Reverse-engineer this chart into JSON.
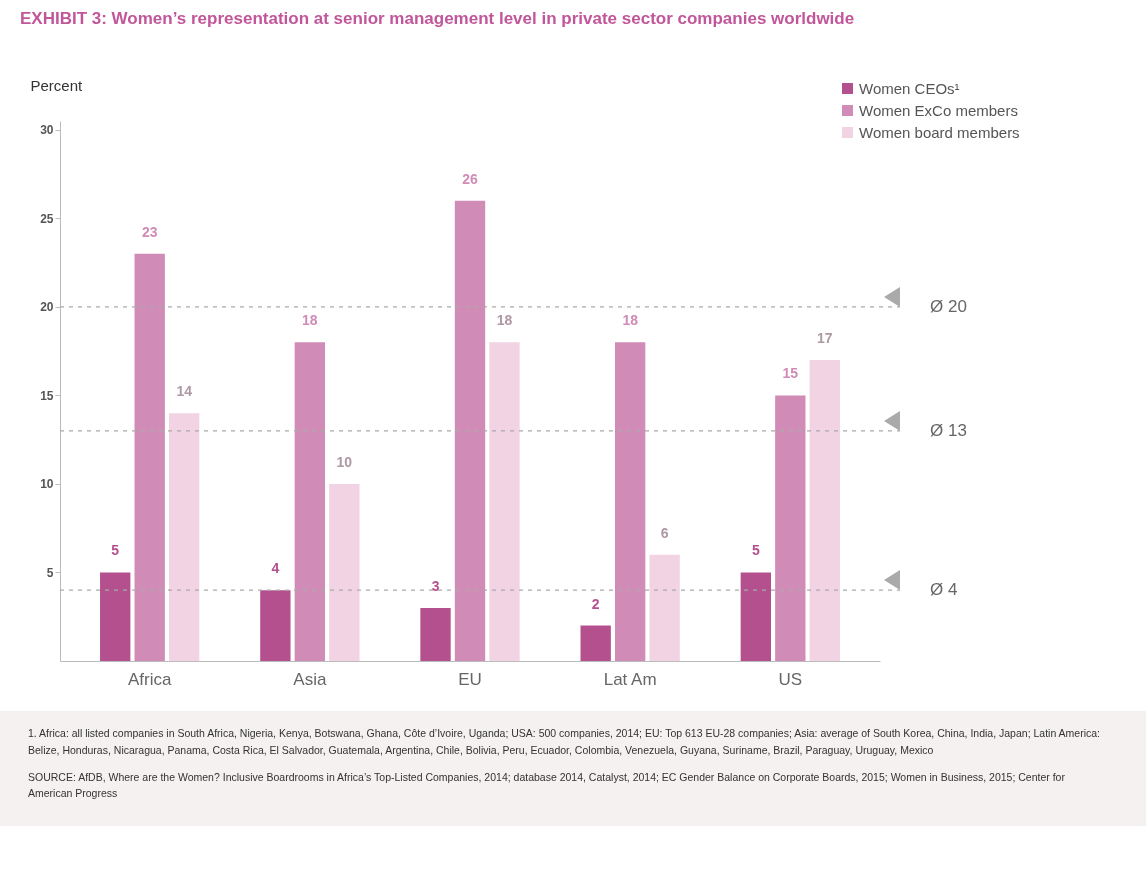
{
  "chart_data": {
    "type": "bar",
    "title": "EXHIBIT 3:  Women’s representation at senior management level in private sector companies worldwide",
    "ylabel": "Percent",
    "categories": [
      "Africa",
      "Asia",
      "EU",
      "Lat Am",
      "US"
    ],
    "series": [
      {
        "name": "Women CEOs¹",
        "color": "#b5508f",
        "values": [
          5,
          4,
          3,
          2,
          5
        ]
      },
      {
        "name": "Women ExCo members",
        "color": "#d08bb6",
        "values": [
          23,
          18,
          26,
          18,
          15
        ]
      },
      {
        "name": "Women board members",
        "color": "#f1d3e3",
        "values": [
          14,
          10,
          18,
          6,
          17
        ]
      }
    ],
    "ylim": [
      0,
      30.5
    ],
    "yticks": [
      5,
      10,
      15,
      20,
      25,
      30
    ],
    "grid": false,
    "legend": "top right",
    "data_labels": true,
    "ref_lines": [
      {
        "axis": "y",
        "value": 20,
        "label": "Ø 20",
        "color": "#aaaaaa",
        "line_style": "dashed"
      },
      {
        "axis": "y",
        "value": 13,
        "label": "Ø 13",
        "color": "#aaaaaa",
        "line_style": "dashed"
      },
      {
        "axis": "y",
        "value": 4,
        "label": "Ø 4",
        "color": "#aaaaaa",
        "line_style": "dashed"
      }
    ],
    "annotations": [
      "1. Africa: all listed companies in South Africa, Nigeria, Kenya, Botswana, Ghana, Côte d’Ivoire, Uganda; USA: 500 companies, 2014; EU: Top 613 EU-28 companies; Asia: average of South Korea, China, India, Japan; Latin America: Belize, Honduras, Nicaragua, Panama, Costa Rica, El Salvador, Guatemala, Argentina, Chile, Bolivia, Peru, Ecuador, Colombia, Venezuela, Guyana, Suriname, Brazil, Paraguay, Uruguay, Mexico",
      "SOURCE: AfDB, Where are the Women? Inclusive Boardrooms in Africa’s Top-Listed Companies, 2014; database 2014, Catalyst, 2014; EC Gender Balance on Corporate Boards, 2015; Women in Business, 2015; Center for American Progress"
    ]
  }
}
